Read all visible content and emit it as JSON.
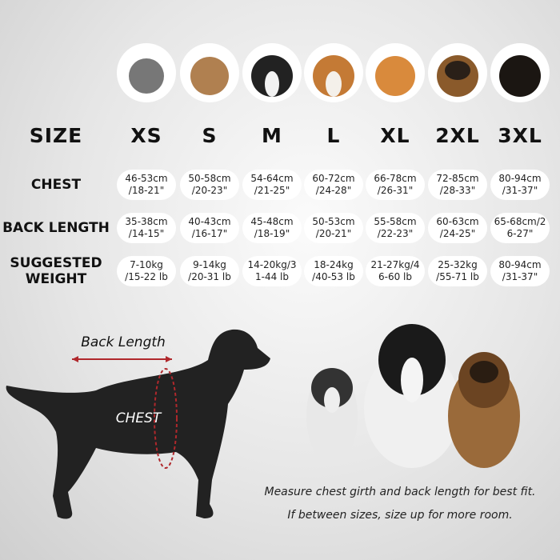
{
  "header": [
    "SIZE",
    "XS",
    "S",
    "M",
    "L",
    "XL",
    "2XL",
    "3XL"
  ],
  "rows": [
    {
      "label": [
        "CHEST"
      ],
      "cells": [
        [
          "46-53cm",
          "/18-21\""
        ],
        [
          "50-58cm",
          "/20-23\""
        ],
        [
          "54-64cm",
          "/21-25\""
        ],
        [
          "60-72cm",
          "/24-28\""
        ],
        [
          "66-78cm",
          "/26-31\""
        ],
        [
          "72-85cm",
          "/28-33\""
        ],
        [
          "80-94cm",
          "/31-37\""
        ]
      ]
    },
    {
      "label": [
        "BACK LENGTH"
      ],
      "cells": [
        [
          "35-38cm",
          "/14-15\""
        ],
        [
          "40-43cm",
          "/16-17\""
        ],
        [
          "45-48cm",
          "/18-19\""
        ],
        [
          "50-53cm",
          "/20-21\""
        ],
        [
          "55-58cm",
          "/22-23\""
        ],
        [
          "60-63cm",
          "/24-25\""
        ],
        [
          "65-68cm/2",
          "6-27\""
        ]
      ]
    },
    {
      "label": [
        "SUGGESTED",
        "WEIGHT"
      ],
      "cells": [
        [
          "7-10kg",
          "/15-22 lb"
        ],
        [
          "9-14kg",
          "/20-31 lb"
        ],
        [
          "14-20kg/3",
          "1-44 lb"
        ],
        [
          "18-24kg",
          "/40-53 lb"
        ],
        [
          "21-27kg/4",
          "6-60 lb"
        ],
        [
          "25-32kg",
          "/55-71 lb"
        ],
        [
          "80-94cm",
          "/31-37\""
        ]
      ]
    }
  ],
  "diagram": {
    "back_length": "Back Length",
    "chest": "CHEST"
  },
  "caption": [
    "Measure chest girth and back length for best fit.",
    "If between sizes, size up for more room."
  ]
}
